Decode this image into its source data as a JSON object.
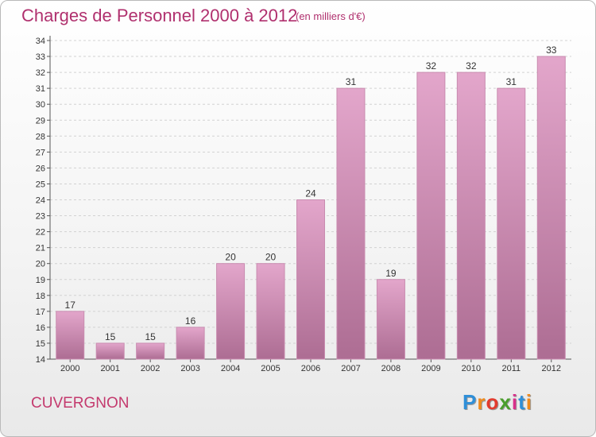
{
  "header": {
    "title": "Charges de Personnel 2000 à 2012",
    "subtitle": "(en milliers d'€)"
  },
  "footer": {
    "commune": "CUVERGNON",
    "logo_letters": [
      "P",
      "r",
      "o",
      "x",
      "i",
      "t",
      "i"
    ],
    "logo_colors": [
      "#2f8fd8",
      "#f08a1c",
      "#e23b2e",
      "#4a9e2c",
      "#d82f8a",
      "#2f8fd8",
      "#f08a1c"
    ]
  },
  "colors": {
    "bar_top": "#e3a6cb",
    "bar_bottom": "#ad6d93",
    "bar_side": "#c98cb0",
    "title": "#b0306e"
  },
  "chart_data": {
    "type": "bar",
    "categories": [
      "2000",
      "2001",
      "2002",
      "2003",
      "2004",
      "2005",
      "2006",
      "2007",
      "2008",
      "2009",
      "2010",
      "2011",
      "2012"
    ],
    "values": [
      17,
      15,
      15,
      16,
      20,
      20,
      24,
      31,
      19,
      32,
      32,
      31,
      33
    ],
    "ylim": [
      14,
      34
    ],
    "yticks": [
      14,
      15,
      16,
      17,
      18,
      19,
      20,
      21,
      22,
      23,
      24,
      25,
      26,
      27,
      28,
      29,
      30,
      31,
      32,
      33,
      34
    ],
    "grid": true
  }
}
